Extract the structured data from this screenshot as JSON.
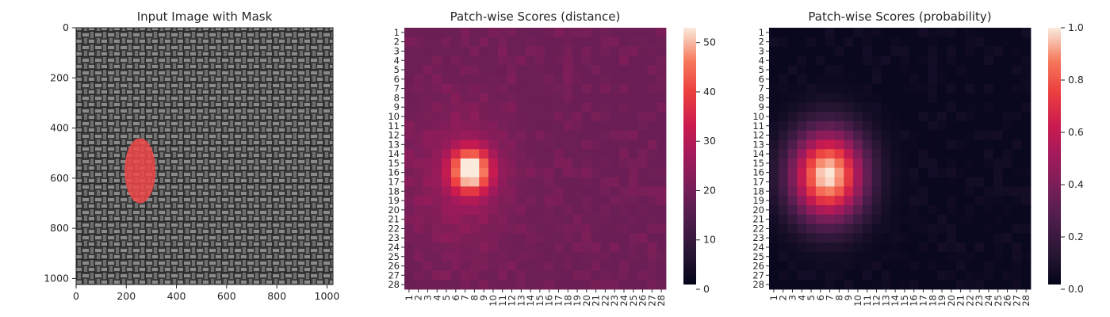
{
  "chart_data": [
    {
      "type": "image",
      "title": "Input Image with Mask",
      "xticks": [
        "0",
        "200",
        "400",
        "600",
        "800",
        "1000"
      ],
      "xtick_values": [
        0,
        200,
        400,
        600,
        800,
        1000
      ],
      "yticks": [
        "0",
        "200",
        "400",
        "600",
        "800",
        "1000"
      ],
      "ytick_values": [
        0,
        200,
        400,
        600,
        800,
        1000
      ],
      "xlim": [
        0,
        1024
      ],
      "ylim": [
        1024,
        0
      ],
      "mask": {
        "color": "#f04848",
        "center": [
          255,
          570
        ],
        "radii": [
          62,
          130
        ]
      },
      "texture_colors": [
        "#3a3a3a",
        "#8d8d8d"
      ]
    },
    {
      "type": "heatmap",
      "title": "Patch-wise Scores (distance)",
      "rows": [
        "1",
        "2",
        "3",
        "4",
        "5",
        "6",
        "7",
        "8",
        "9",
        "10",
        "11",
        "12",
        "13",
        "14",
        "15",
        "16",
        "17",
        "18",
        "19",
        "20",
        "21",
        "22",
        "23",
        "24",
        "25",
        "26",
        "27",
        "28"
      ],
      "cols": [
        "1",
        "2",
        "3",
        "4",
        "5",
        "6",
        "7",
        "8",
        "9",
        "10",
        "11",
        "12",
        "13",
        "14",
        "15",
        "16",
        "17",
        "18",
        "19",
        "20",
        "21",
        "22",
        "23",
        "24",
        "25",
        "26",
        "27",
        "28"
      ],
      "colorbar": {
        "ticks": [
          "0",
          "10",
          "20",
          "30",
          "40",
          "50"
        ],
        "tick_values": [
          0,
          10,
          20,
          30,
          40,
          50
        ],
        "range": [
          0,
          53
        ]
      },
      "background_value": 18,
      "hotspot": {
        "center": [
          7.6,
          15.8
        ],
        "radii": [
          2.6,
          2.9
        ],
        "peak": 53
      },
      "halo": {
        "center": [
          6.5,
          16.5
        ],
        "radii": [
          5.5,
          7.5
        ],
        "amount": 6
      },
      "noise_amplitude": 3
    },
    {
      "type": "heatmap",
      "title": "Patch-wise Scores (probability)",
      "rows": [
        "1",
        "2",
        "3",
        "4",
        "5",
        "6",
        "7",
        "8",
        "9",
        "10",
        "11",
        "12",
        "13",
        "14",
        "15",
        "16",
        "17",
        "18",
        "19",
        "20",
        "21",
        "22",
        "23",
        "24",
        "25",
        "26",
        "27",
        "28"
      ],
      "cols": [
        "1",
        "2",
        "3",
        "4",
        "5",
        "6",
        "7",
        "8",
        "9",
        "10",
        "11",
        "12",
        "13",
        "14",
        "15",
        "16",
        "17",
        "18",
        "19",
        "20",
        "21",
        "22",
        "23",
        "24",
        "25",
        "26",
        "27",
        "28"
      ],
      "colorbar": {
        "ticks": [
          "0.0",
          "0.2",
          "0.4",
          "0.6",
          "0.8",
          "1.0"
        ],
        "tick_values": [
          0,
          0.2,
          0.4,
          0.6,
          0.8,
          1.0
        ],
        "range": [
          0,
          1.0
        ]
      },
      "background_value": 0.02,
      "hotspot": {
        "center": [
          6.8,
          16.3
        ],
        "radii": [
          4.6,
          5.6
        ],
        "peak": 1.0
      },
      "noise_amplitude": 0.04
    }
  ]
}
